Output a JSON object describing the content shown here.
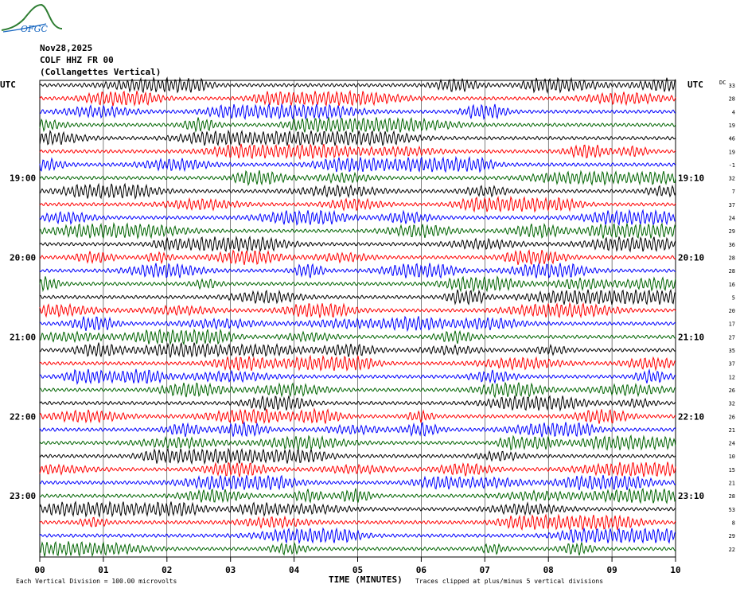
{
  "logo_text": "OFGC",
  "header": {
    "date": "Nov28,2025",
    "station": "COLF HHZ FR 00",
    "location": "(Collangettes Vertical)"
  },
  "axis": {
    "left_label": "UTC",
    "right_label": "UTC",
    "dc_label": "DC",
    "xlabel": "TIME (MINUTES)",
    "footer_left": "Each Vertical Division =  100.00 microvolts",
    "footer_right": "Traces clipped at plus/minus 5 vertical divisions"
  },
  "colors": {
    "cycle": [
      "#000000",
      "#ff0000",
      "#0000ff",
      "#006400"
    ],
    "grid": "#000000",
    "logo": "#2e7d32"
  },
  "chart_data": {
    "type": "line",
    "xlim": [
      0,
      10
    ],
    "x_ticks": [
      "00",
      "01",
      "02",
      "03",
      "04",
      "05",
      "06",
      "07",
      "08",
      "09",
      "10"
    ],
    "trace_count": 36,
    "left_time_labels": [
      {
        "row": 7,
        "label": "19:00"
      },
      {
        "row": 13,
        "label": "20:00"
      },
      {
        "row": 19,
        "label": "21:00"
      },
      {
        "row": 25,
        "label": "22:00"
      },
      {
        "row": 31,
        "label": "23:00"
      }
    ],
    "right_time_labels": [
      {
        "row": 7,
        "label": "19:10"
      },
      {
        "row": 13,
        "label": "20:10"
      },
      {
        "row": 19,
        "label": "21:10"
      },
      {
        "row": 25,
        "label": "22:10"
      },
      {
        "row": 31,
        "label": "23:10"
      }
    ],
    "dc_offsets": [
      "33",
      "28",
      "4",
      "19",
      "46",
      "19",
      "-1",
      "32",
      "7",
      "37",
      "24",
      "29",
      "36",
      "28",
      "28",
      "16",
      "5",
      "20",
      "17",
      "27",
      "35",
      "37",
      "12",
      "26",
      "32",
      "26",
      "21",
      "24",
      "10",
      "15",
      "21",
      "28",
      "53",
      "8",
      "29",
      "22"
    ]
  }
}
